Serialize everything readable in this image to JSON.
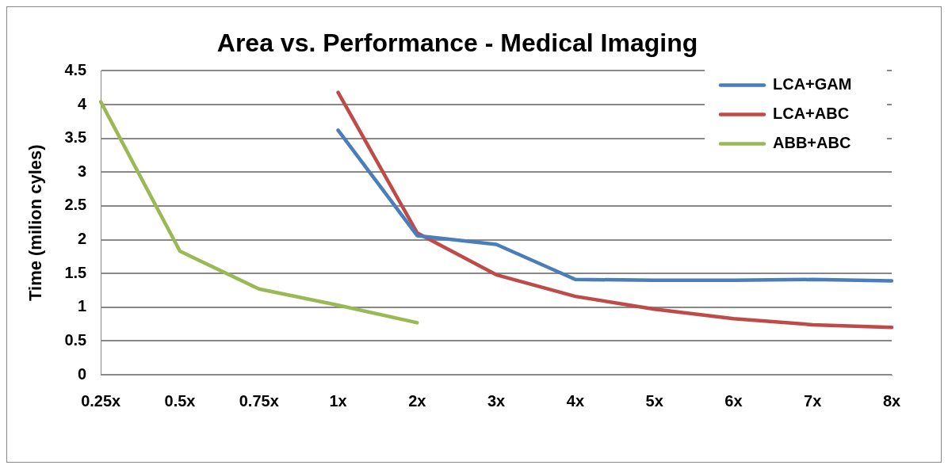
{
  "chart_data": {
    "type": "line",
    "title": "Area vs. Performance - Medical Imaging",
    "ylabel": "Time (milion cyles)",
    "categories": [
      "0.25x",
      "0.5x",
      "0.75x",
      "1x",
      "2x",
      "3x",
      "4x",
      "5x",
      "6x",
      "7x",
      "8x"
    ],
    "series": [
      {
        "name": "LCA+GAM",
        "color": "#4a7ebb",
        "values": [
          null,
          null,
          null,
          3.62,
          2.06,
          1.93,
          1.41,
          1.4,
          1.4,
          1.41,
          1.39
        ]
      },
      {
        "name": "LCA+ABC",
        "color": "#be4b48",
        "values": [
          null,
          null,
          null,
          4.18,
          2.1,
          1.48,
          1.16,
          0.97,
          0.83,
          0.74,
          0.7
        ]
      },
      {
        "name": "ABB+ABC",
        "color": "#98b954",
        "values": [
          4.04,
          1.83,
          1.27,
          1.03,
          0.77,
          null,
          null,
          null,
          null,
          null,
          null
        ]
      }
    ],
    "ylim": [
      0,
      4.5
    ],
    "yticks": [
      0,
      0.5,
      1,
      1.5,
      2,
      2.5,
      3,
      3.5,
      4,
      4.5
    ],
    "grid": "y",
    "legend": "top right",
    "marker": "none",
    "line_style": "solid"
  }
}
